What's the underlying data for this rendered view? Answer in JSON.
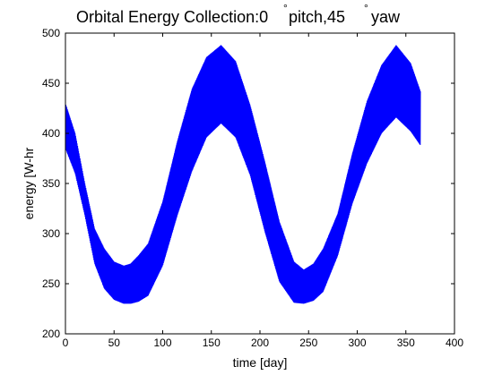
{
  "chart_data": {
    "type": "line",
    "title": {
      "prefix": "Orbital Energy Collection:0",
      "deg_symbol": "°",
      "middle": " pitch,45",
      "suffix": " yaw"
    },
    "xlabel": "time [day]",
    "ylabel": "energy [W-hr",
    "xlim": [
      0,
      400
    ],
    "ylim": [
      200,
      500
    ],
    "xticks": [
      0,
      50,
      100,
      150,
      200,
      250,
      300,
      350,
      400
    ],
    "yticks": [
      200,
      250,
      300,
      350,
      400,
      450,
      500
    ],
    "grid": false,
    "line_color": "#0000ff",
    "series": [
      {
        "x": [
          0,
          10,
          20,
          30,
          40,
          50,
          60,
          67,
          75,
          85,
          100,
          115,
          130,
          145,
          160,
          175,
          190,
          205,
          220,
          235,
          245,
          255,
          265,
          280,
          295,
          310,
          325,
          340,
          355,
          365
        ],
        "high": [
          430,
          400,
          350,
          305,
          285,
          272,
          268,
          270,
          278,
          290,
          332,
          392,
          444,
          476,
          488,
          472,
          428,
          372,
          312,
          272,
          264,
          270,
          285,
          320,
          380,
          432,
          468,
          488,
          470,
          442
        ],
        "low": [
          385,
          360,
          318,
          270,
          245,
          234,
          230,
          230,
          232,
          238,
          268,
          318,
          362,
          396,
          410,
          396,
          358,
          302,
          252,
          231,
          230,
          233,
          242,
          278,
          330,
          370,
          400,
          416,
          402,
          388
        ]
      }
    ]
  }
}
